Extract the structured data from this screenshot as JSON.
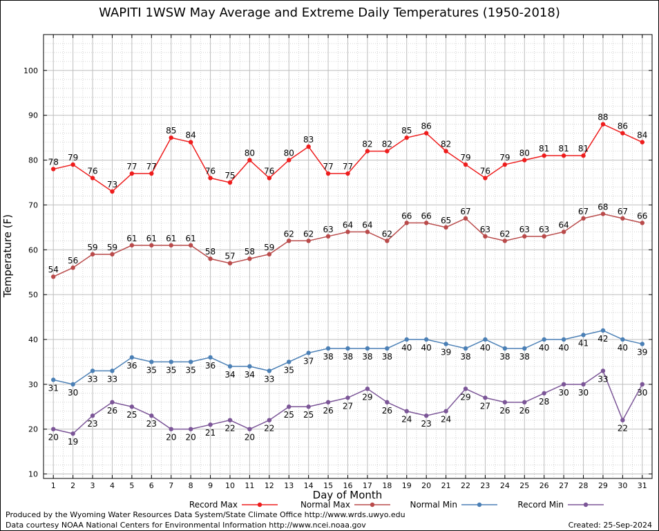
{
  "title": "WAPITI 1WSW May Average and Extreme Daily Temperatures (1950-2018)",
  "footer": {
    "line1": "Produced by the Wyoming Water Resources Data System/State Climate Office http://www.wrds.uwyo.edu",
    "line2": "Data courtesy NOAA National Centers for Environmental Information http://www.ncei.noaa.gov",
    "created": "Created:  25-Sep-2024"
  },
  "chart_data": {
    "type": "line",
    "xlabel": "Day of Month",
    "ylabel": "Temperature (F)",
    "xlim": [
      0.5,
      31.5
    ],
    "ylim": [
      9,
      108
    ],
    "yticks": [
      10,
      20,
      30,
      40,
      50,
      60,
      70,
      80,
      90,
      100
    ],
    "grid": true,
    "legend_position": "bottom",
    "x": [
      1,
      2,
      3,
      4,
      5,
      6,
      7,
      8,
      9,
      10,
      11,
      12,
      13,
      14,
      15,
      16,
      17,
      18,
      19,
      20,
      21,
      22,
      23,
      24,
      25,
      26,
      27,
      28,
      29,
      30,
      31
    ],
    "series": [
      {
        "name": "Record Max",
        "color": "#ee1c1c",
        "label_position": "above",
        "values": [
          78,
          79,
          76,
          73,
          77,
          77,
          85,
          84,
          76,
          75,
          80,
          76,
          80,
          83,
          77,
          77,
          82,
          82,
          85,
          86,
          82,
          79,
          76,
          79,
          80,
          81,
          81,
          81,
          88,
          86,
          84
        ]
      },
      {
        "name": "Normal Max",
        "color": "#b94a4a",
        "label_position": "above",
        "values": [
          54,
          56,
          59,
          59,
          61,
          61,
          61,
          61,
          58,
          57,
          58,
          59,
          62,
          62,
          63,
          64,
          64,
          62,
          66,
          66,
          65,
          67,
          63,
          62,
          63,
          63,
          64,
          67,
          68,
          67,
          66
        ]
      },
      {
        "name": "Normal Min",
        "color": "#4a7fb5",
        "label_position": "below",
        "values": [
          31,
          30,
          33,
          33,
          36,
          35,
          35,
          35,
          36,
          34,
          34,
          33,
          35,
          37,
          38,
          38,
          38,
          38,
          40,
          40,
          39,
          38,
          40,
          38,
          38,
          40,
          40,
          41,
          42,
          40,
          39
        ]
      },
      {
        "name": "Record Min",
        "color": "#7b5597",
        "label_position": "below",
        "values": [
          20,
          19,
          23,
          26,
          25,
          23,
          20,
          20,
          21,
          22,
          20,
          22,
          25,
          25,
          26,
          27,
          29,
          26,
          24,
          23,
          24,
          29,
          27,
          26,
          26,
          28,
          30,
          30,
          33,
          22,
          30
        ]
      }
    ]
  }
}
